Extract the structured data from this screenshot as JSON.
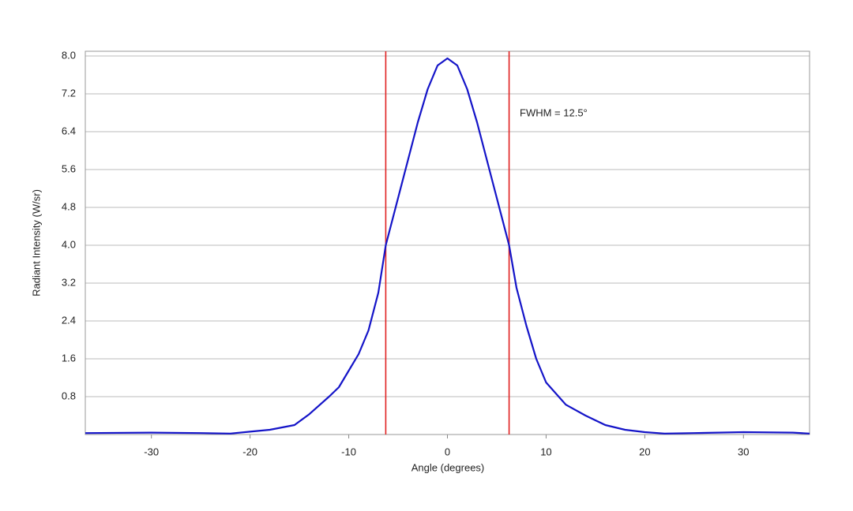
{
  "chart_data": {
    "type": "line",
    "x_label": "Angle (degrees)",
    "y_label": "Radiant Intensity (W/sr)",
    "annotation": "FWHM = 12.5°",
    "color": "#1414c8",
    "x": [
      -36.7,
      -30,
      -25,
      -22,
      -20,
      -18,
      -15.5,
      -14,
      -12,
      -11,
      -10,
      -9,
      -8,
      -7,
      -6.25,
      -5,
      -4,
      -3,
      -2,
      -1,
      0,
      1,
      2,
      3,
      4,
      5,
      6.25,
      7,
      8,
      9,
      10,
      12,
      14,
      16,
      18,
      20,
      22,
      25,
      30,
      35,
      36.7
    ],
    "values": [
      0.03,
      0.04,
      0.03,
      0.02,
      0.06,
      0.1,
      0.2,
      0.43,
      0.8,
      1.0,
      1.35,
      1.7,
      2.2,
      3.0,
      4.0,
      5.0,
      5.8,
      6.6,
      7.3,
      7.8,
      7.95,
      7.8,
      7.3,
      6.6,
      5.8,
      5.0,
      4.0,
      3.1,
      2.3,
      1.6,
      1.1,
      0.63,
      0.4,
      0.2,
      0.1,
      0.05,
      0.02,
      0.03,
      0.05,
      0.04,
      0.02
    ],
    "vlines": [
      -6.25,
      6.25
    ],
    "vline_color": "#e02020",
    "xlim": [
      -36.7,
      36.7
    ],
    "ylim": [
      0,
      8.1
    ],
    "xticks": [
      -30,
      -20,
      -10,
      0,
      10,
      20,
      30
    ],
    "yticks": [
      0.8,
      1.6,
      2.4,
      3.2,
      {
        "value": 4,
        "label": "4.0"
      },
      4.8,
      5.6,
      6.4,
      7.2,
      {
        "value": 8,
        "label": "8.0"
      }
    ],
    "grid": true
  }
}
